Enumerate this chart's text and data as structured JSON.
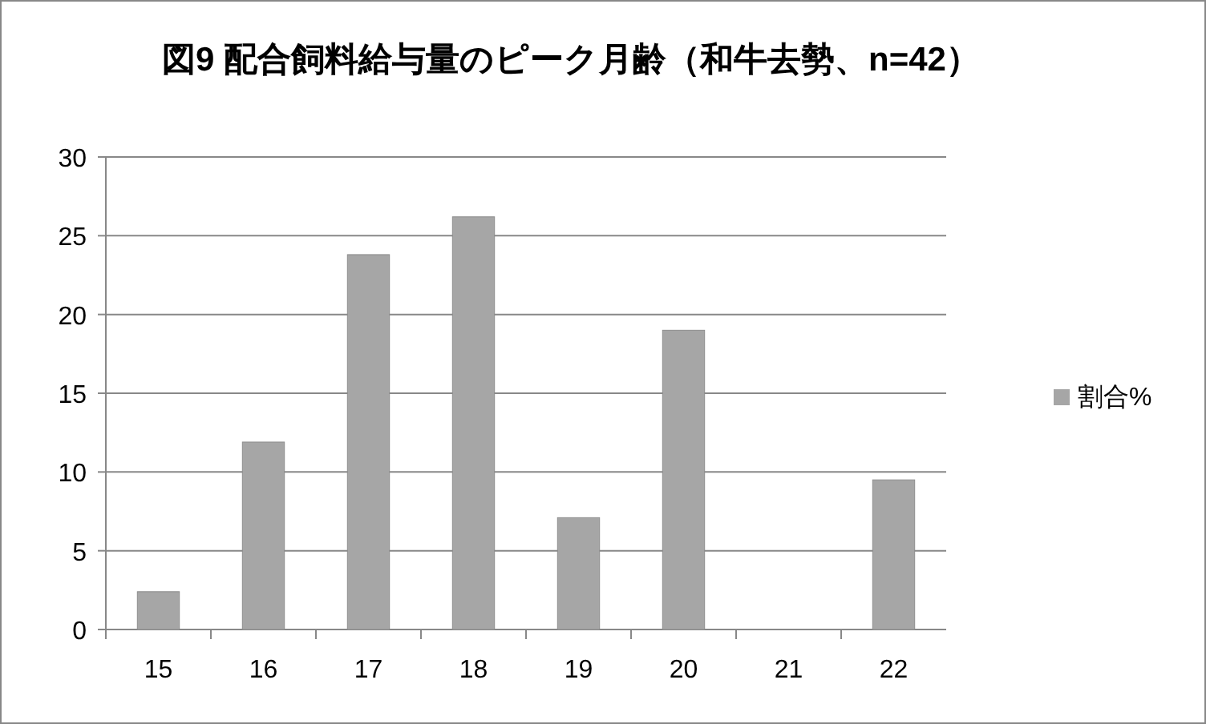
{
  "chart_data": {
    "type": "bar",
    "title": "図9  配合飼料給与量のピーク月齢（和牛去勢、n=42）",
    "categories": [
      "15",
      "16",
      "17",
      "18",
      "19",
      "20",
      "21",
      "22"
    ],
    "series": [
      {
        "name": "割合%",
        "color": "#a6a6a6",
        "values": [
          2.4,
          11.9,
          23.8,
          26.2,
          7.1,
          19.0,
          0,
          9.5
        ]
      }
    ],
    "ylim": [
      0,
      30
    ],
    "yticks": [
      0,
      5,
      10,
      15,
      20,
      25,
      30
    ],
    "grid": "y",
    "legend": "right"
  }
}
